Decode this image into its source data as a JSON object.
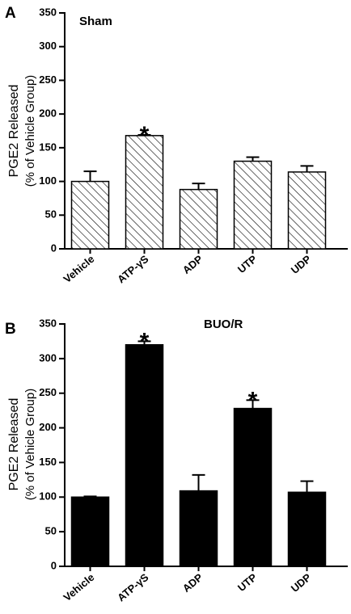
{
  "chart_data": [
    {
      "type": "bar",
      "panel_label": "A",
      "group_label": "Sham",
      "ylabel": "PGE2 Released",
      "ylabel_line2": "(% of Vehicle Group)",
      "categories": [
        "Vehicle",
        "ATP-γS",
        "ADP",
        "UTP",
        "UDP"
      ],
      "values": [
        100,
        168,
        88,
        130,
        114
      ],
      "errors": [
        15,
        1,
        9,
        6,
        9
      ],
      "significant": [
        false,
        true,
        false,
        false,
        false
      ],
      "significance_marker": "*",
      "ylim": [
        0,
        350
      ],
      "yticks": [
        0,
        50,
        100,
        150,
        200,
        250,
        300,
        350
      ],
      "fill": "hatched",
      "colors": {
        "bar": "#ffffff",
        "stroke": "#000000"
      }
    },
    {
      "type": "bar",
      "panel_label": "B",
      "group_label": "BUO/R",
      "ylabel": "PGE2 Released",
      "ylabel_line2": "(% of Vehicle  Group)",
      "categories": [
        "Vehicle",
        "ATP-γS",
        "ADP",
        "UTP",
        "UDP"
      ],
      "values": [
        100,
        320,
        109,
        228,
        107
      ],
      "errors": [
        1,
        5,
        23,
        12,
        16
      ],
      "significant": [
        false,
        true,
        false,
        true,
        false
      ],
      "significance_marker": "*",
      "ylim": [
        0,
        350
      ],
      "yticks": [
        0,
        50,
        100,
        150,
        200,
        250,
        300,
        350
      ],
      "fill": "solid",
      "colors": {
        "bar": "#000000",
        "stroke": "#000000"
      }
    }
  ]
}
